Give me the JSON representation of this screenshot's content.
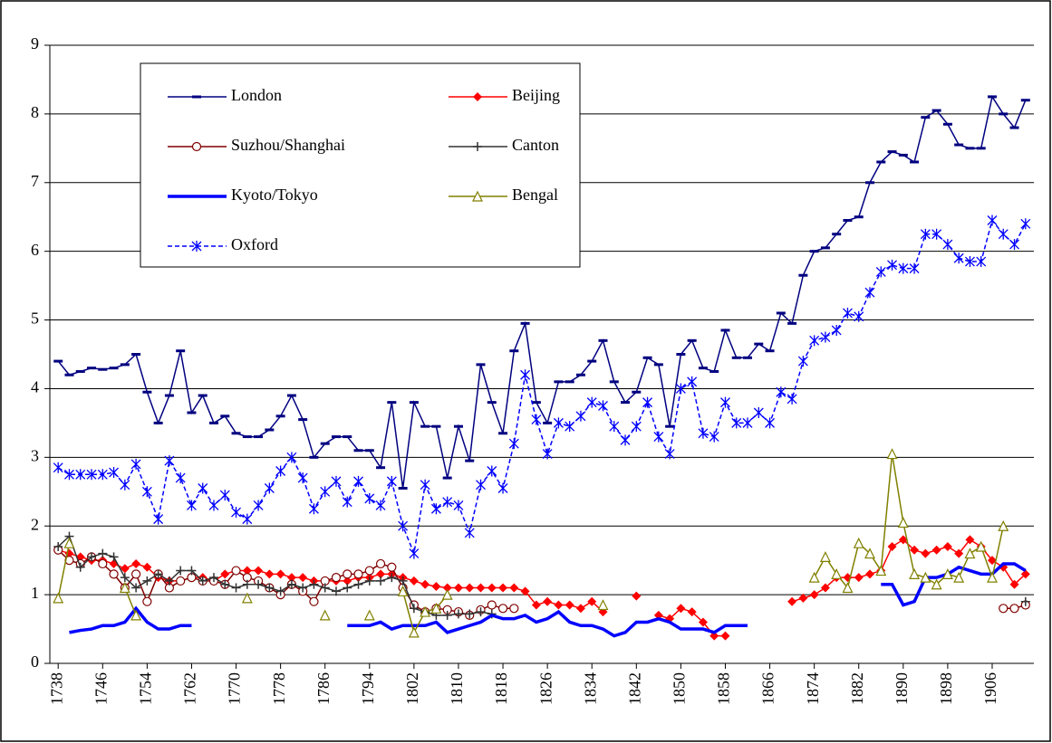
{
  "chart_data": {
    "type": "line",
    "x": [
      1738,
      1740,
      1742,
      1744,
      1746,
      1748,
      1750,
      1752,
      1754,
      1756,
      1758,
      1760,
      1762,
      1764,
      1766,
      1768,
      1770,
      1772,
      1774,
      1776,
      1778,
      1780,
      1782,
      1784,
      1786,
      1788,
      1790,
      1792,
      1794,
      1796,
      1798,
      1800,
      1802,
      1804,
      1806,
      1808,
      1810,
      1812,
      1814,
      1816,
      1818,
      1820,
      1822,
      1824,
      1826,
      1828,
      1830,
      1832,
      1834,
      1836,
      1838,
      1840,
      1842,
      1844,
      1846,
      1848,
      1850,
      1852,
      1854,
      1856,
      1858,
      1860,
      1862,
      1864,
      1866,
      1868,
      1870,
      1872,
      1874,
      1876,
      1878,
      1880,
      1882,
      1884,
      1886,
      1888,
      1890,
      1892,
      1894,
      1896,
      1898,
      1900,
      1902,
      1904,
      1906,
      1908,
      1910,
      1912
    ],
    "xlim": [
      1736.5,
      1913.5
    ],
    "xticks": [
      1738,
      1746,
      1754,
      1762,
      1770,
      1778,
      1786,
      1794,
      1802,
      1810,
      1818,
      1826,
      1834,
      1842,
      1850,
      1858,
      1866,
      1874,
      1882,
      1890,
      1898,
      1906
    ],
    "ylim": [
      0,
      9
    ],
    "yticks": [
      0,
      1,
      2,
      3,
      4,
      5,
      6,
      7,
      8,
      9
    ],
    "grid": true,
    "legend": "top-left",
    "series": [
      {
        "name": "London",
        "color": "#000080",
        "marker": "dash",
        "dash": false,
        "values": [
          4.4,
          4.2,
          4.25,
          4.3,
          4.28,
          4.3,
          4.35,
          4.5,
          3.95,
          3.5,
          3.9,
          4.55,
          3.65,
          3.9,
          3.5,
          3.6,
          3.35,
          3.3,
          3.3,
          3.4,
          3.6,
          3.9,
          3.55,
          3.0,
          3.2,
          3.3,
          3.3,
          3.1,
          3.1,
          2.85,
          3.8,
          2.55,
          3.8,
          3.45,
          3.45,
          2.7,
          3.45,
          2.95,
          4.35,
          3.8,
          3.35,
          4.55,
          4.95,
          3.8,
          3.5,
          4.1,
          4.1,
          4.2,
          4.4,
          4.7,
          4.1,
          3.8,
          3.95,
          4.45,
          4.35,
          3.45,
          4.5,
          4.7,
          4.3,
          4.25,
          4.85,
          4.45,
          4.45,
          4.65,
          4.55,
          5.1,
          4.95,
          5.65,
          6.0,
          6.05,
          6.25,
          6.45,
          6.5,
          7.0,
          7.3,
          7.45,
          7.4,
          7.3,
          7.95,
          8.05,
          7.85,
          7.55,
          7.5,
          7.5,
          8.25,
          8.0,
          7.8,
          8.2
        ]
      },
      {
        "name": "Beijing",
        "color": "#ff0000",
        "marker": "diamond",
        "dash": false,
        "values": [
          1.65,
          1.6,
          1.55,
          1.5,
          1.5,
          1.45,
          1.38,
          1.45,
          1.4,
          1.25,
          1.2,
          1.2,
          1.25,
          1.25,
          1.2,
          1.3,
          1.35,
          1.35,
          1.35,
          1.3,
          1.3,
          1.25,
          1.25,
          1.2,
          1.2,
          1.2,
          1.2,
          1.25,
          1.25,
          1.3,
          1.3,
          1.25,
          1.2,
          1.15,
          1.12,
          1.1,
          1.1,
          1.1,
          1.1,
          1.1,
          1.1,
          1.1,
          1.05,
          0.85,
          0.9,
          0.85,
          0.85,
          0.8,
          0.9,
          0.75,
          null,
          null,
          0.98,
          null,
          0.7,
          0.65,
          0.8,
          0.75,
          0.6,
          0.4,
          0.4,
          null,
          null,
          null,
          null,
          null,
          0.9,
          0.95,
          1.0,
          1.1,
          1.25,
          1.25,
          1.25,
          1.3,
          1.35,
          1.7,
          1.8,
          1.65,
          1.6,
          1.65,
          1.7,
          1.6,
          1.8,
          1.7,
          1.5,
          1.4,
          1.15,
          1.3
        ]
      },
      {
        "name": "Suzhou/Shanghai",
        "color": "#800000",
        "marker": "circle",
        "dash": false,
        "values": [
          1.65,
          1.5,
          1.45,
          1.55,
          1.45,
          1.3,
          1.1,
          1.3,
          0.9,
          1.3,
          1.1,
          1.2,
          1.25,
          1.2,
          1.2,
          1.15,
          1.35,
          1.25,
          1.2,
          1.1,
          1.0,
          1.15,
          1.05,
          0.9,
          1.2,
          1.25,
          1.3,
          1.3,
          1.35,
          1.45,
          1.4,
          1.1,
          0.85,
          0.75,
          0.8,
          0.78,
          0.75,
          0.7,
          0.78,
          0.85,
          0.8,
          0.8,
          null,
          null,
          null,
          null,
          null,
          null,
          null,
          null,
          null,
          null,
          null,
          null,
          null,
          null,
          null,
          null,
          null,
          null,
          null,
          null,
          null,
          null,
          null,
          null,
          null,
          null,
          null,
          null,
          null,
          null,
          null,
          null,
          null,
          null,
          null,
          null,
          null,
          null,
          null,
          null,
          null,
          null,
          null,
          0.8,
          0.8,
          0.85
        ]
      },
      {
        "name": "Canton",
        "color": "#333333",
        "marker": "plus",
        "dash": false,
        "values": [
          1.7,
          1.85,
          1.4,
          1.55,
          1.6,
          1.55,
          1.25,
          1.1,
          1.2,
          1.3,
          1.2,
          1.35,
          1.35,
          1.2,
          1.25,
          1.15,
          1.1,
          1.15,
          1.15,
          1.1,
          1.05,
          1.15,
          1.1,
          1.15,
          1.1,
          1.05,
          1.1,
          1.15,
          1.2,
          1.2,
          1.25,
          1.2,
          0.8,
          0.75,
          0.7,
          0.7,
          0.72,
          0.72,
          0.75,
          0.72,
          null,
          null,
          null,
          null,
          null,
          null,
          null,
          null,
          null,
          null,
          null,
          null,
          null,
          null,
          null,
          null,
          null,
          null,
          null,
          null,
          null,
          null,
          null,
          null,
          null,
          null,
          null,
          null,
          null,
          null,
          null,
          null,
          null,
          null,
          null,
          null,
          null,
          null,
          null,
          null,
          null,
          null,
          null,
          null,
          null,
          null,
          null,
          0.9
        ]
      },
      {
        "name": "Kyoto/Tokyo",
        "color": "#0000ff",
        "marker": "none",
        "dash": false,
        "values": [
          null,
          0.45,
          0.48,
          0.5,
          0.55,
          0.55,
          0.6,
          0.8,
          0.6,
          0.5,
          0.5,
          0.55,
          0.55,
          null,
          null,
          null,
          null,
          null,
          null,
          null,
          null,
          null,
          null,
          null,
          null,
          null,
          0.55,
          0.55,
          0.55,
          0.6,
          0.5,
          0.55,
          0.55,
          0.55,
          0.6,
          0.45,
          0.5,
          0.55,
          0.6,
          0.7,
          0.65,
          0.65,
          0.7,
          0.6,
          0.65,
          0.75,
          0.6,
          0.55,
          0.55,
          0.5,
          0.4,
          0.45,
          0.6,
          0.6,
          0.65,
          0.6,
          0.5,
          0.5,
          0.5,
          0.45,
          0.55,
          0.55,
          0.55,
          null,
          null,
          null,
          null,
          null,
          null,
          null,
          null,
          null,
          null,
          null,
          1.15,
          1.15,
          0.85,
          0.9,
          1.25,
          1.25,
          1.3,
          1.4,
          1.35,
          1.3,
          1.3,
          1.45,
          1.45,
          1.35
        ]
      },
      {
        "name": "Bengal",
        "color": "#808000",
        "marker": "triangle",
        "dash": false,
        "values": [
          0.95,
          1.75,
          null,
          null,
          null,
          null,
          1.1,
          0.7,
          null,
          null,
          null,
          null,
          null,
          null,
          null,
          null,
          null,
          0.95,
          null,
          null,
          null,
          null,
          null,
          null,
          0.7,
          null,
          null,
          null,
          0.7,
          null,
          null,
          1.05,
          0.45,
          0.75,
          0.8,
          1.0,
          null,
          null,
          null,
          null,
          null,
          null,
          null,
          null,
          null,
          null,
          null,
          null,
          null,
          0.85,
          null,
          null,
          null,
          null,
          null,
          null,
          null,
          null,
          null,
          null,
          null,
          null,
          null,
          null,
          null,
          null,
          null,
          null,
          1.25,
          1.55,
          1.3,
          1.1,
          1.75,
          1.6,
          1.35,
          3.05,
          2.05,
          1.3,
          1.25,
          1.15,
          1.3,
          1.25,
          1.6,
          1.7,
          1.25,
          2.0,
          null,
          null
        ]
      },
      {
        "name": "Oxford",
        "color": "#0000ff",
        "marker": "asterisk",
        "dash": true,
        "values": [
          2.85,
          2.75,
          2.75,
          2.75,
          2.75,
          2.78,
          2.6,
          2.9,
          2.5,
          2.1,
          2.95,
          2.7,
          2.3,
          2.55,
          2.3,
          2.45,
          2.2,
          2.1,
          2.3,
          2.55,
          2.8,
          3.0,
          2.7,
          2.25,
          2.5,
          2.65,
          2.35,
          2.65,
          2.4,
          2.3,
          2.65,
          2.0,
          1.6,
          2.6,
          2.25,
          2.35,
          2.3,
          1.9,
          2.6,
          2.8,
          2.55,
          3.2,
          4.2,
          3.55,
          3.05,
          3.5,
          3.45,
          3.6,
          3.8,
          3.75,
          3.45,
          3.25,
          3.45,
          3.8,
          3.3,
          3.05,
          4.0,
          4.1,
          3.35,
          3.3,
          3.8,
          3.5,
          3.5,
          3.65,
          3.5,
          3.95,
          3.85,
          4.4,
          4.7,
          4.75,
          4.85,
          5.1,
          5.05,
          5.4,
          5.7,
          5.8,
          5.75,
          5.75,
          6.25,
          6.25,
          6.1,
          5.9,
          5.85,
          5.85,
          6.45,
          6.25,
          6.1,
          6.4
        ]
      }
    ]
  }
}
